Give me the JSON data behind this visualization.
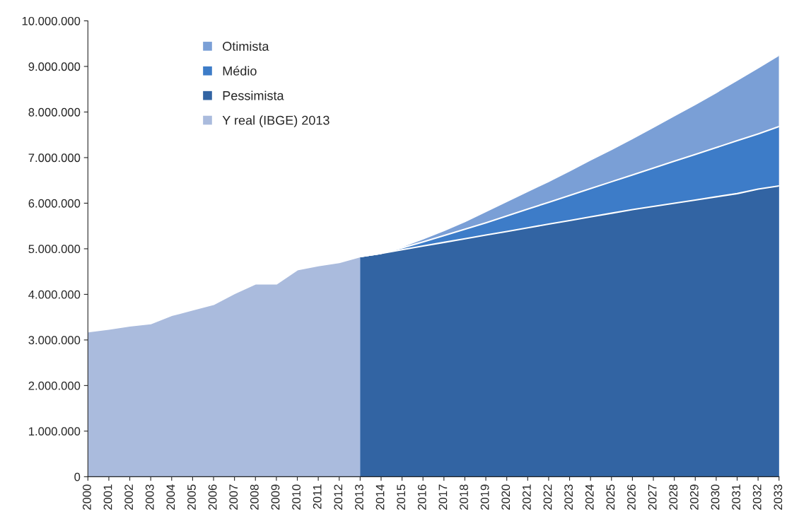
{
  "chart_data": {
    "type": "area",
    "categories": [
      "2000",
      "2001",
      "2002",
      "2003",
      "2004",
      "2005",
      "2006",
      "2007",
      "2008",
      "2009",
      "2010",
      "2011",
      "2012",
      "2013",
      "2014",
      "2015",
      "2016",
      "2017",
      "2018",
      "2019",
      "2020",
      "2021",
      "2022",
      "2023",
      "2024",
      "2025",
      "2026",
      "2027",
      "2028",
      "2029",
      "2030",
      "2031",
      "2032",
      "2033"
    ],
    "series": [
      {
        "name": "Otimista",
        "color": "#7a9fd6",
        "values": [
          null,
          null,
          null,
          null,
          null,
          null,
          null,
          null,
          null,
          null,
          null,
          null,
          null,
          4830000,
          4900000,
          5050000,
          5220000,
          5400000,
          5600000,
          5820000,
          6040000,
          6260000,
          6480000,
          6710000,
          6950000,
          7180000,
          7420000,
          7670000,
          7920000,
          8170000,
          8430000,
          8700000,
          8970000,
          9250000
        ]
      },
      {
        "name": "Médio",
        "color": "#3d7cc8",
        "values": [
          null,
          null,
          null,
          null,
          null,
          null,
          null,
          null,
          null,
          null,
          null,
          null,
          null,
          4830000,
          4900000,
          5020000,
          5150000,
          5290000,
          5430000,
          5570000,
          5720000,
          5870000,
          6020000,
          6170000,
          6320000,
          6470000,
          6620000,
          6770000,
          6920000,
          7070000,
          7220000,
          7370000,
          7520000,
          7680000
        ]
      },
      {
        "name": "Pessimista",
        "color": "#3264a3",
        "values": [
          null,
          null,
          null,
          null,
          null,
          null,
          null,
          null,
          null,
          null,
          null,
          null,
          null,
          4830000,
          4900000,
          4980000,
          5060000,
          5140000,
          5220000,
          5300000,
          5380000,
          5460000,
          5540000,
          5620000,
          5700000,
          5780000,
          5860000,
          5930000,
          6000000,
          6070000,
          6140000,
          6210000,
          6310000,
          6380000
        ]
      },
      {
        "name": "Y real (IBGE) 2013",
        "color": "#aabbdd",
        "values": [
          3180000,
          3240000,
          3310000,
          3360000,
          3540000,
          3660000,
          3780000,
          4020000,
          4230000,
          4230000,
          4540000,
          4630000,
          4700000,
          4830000,
          null,
          null,
          null,
          null,
          null,
          null,
          null,
          null,
          null,
          null,
          null,
          null,
          null,
          null,
          null,
          null,
          null,
          null,
          null,
          null
        ]
      }
    ],
    "ylim": [
      0,
      10000000
    ],
    "yticks": [
      0,
      {
        "value": 1000000,
        "label": "1.000.000"
      },
      {
        "value": 2000000,
        "label": "2.000.000"
      },
      {
        "value": 3000000,
        "label": "3.000.000"
      },
      {
        "value": 4000000,
        "label": "4.000.000"
      },
      {
        "value": 5000000,
        "label": "5.000.000"
      },
      {
        "value": 6000000,
        "label": "6.000.000"
      },
      {
        "value": 7000000,
        "label": "7.000.000"
      },
      {
        "value": 8000000,
        "label": "8.000.000"
      },
      {
        "value": 9000000,
        "label": "9.000.000"
      },
      {
        "value": 10000000,
        "label": "10.000.000"
      }
    ],
    "grid": false,
    "legend": "top left"
  }
}
